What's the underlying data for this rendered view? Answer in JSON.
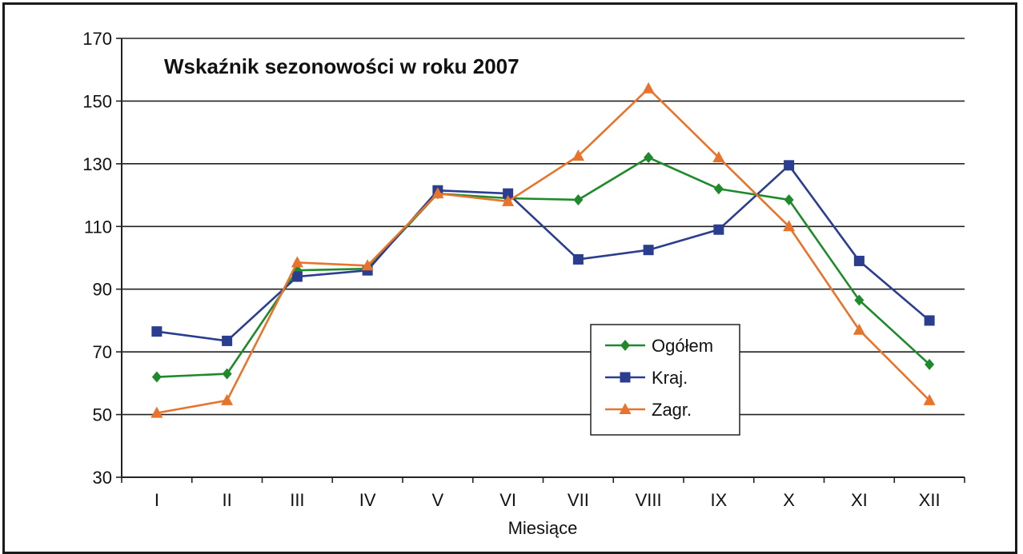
{
  "chart_data": {
    "type": "line",
    "title": "Wskaźnik sezonowości w roku 2007",
    "xlabel": "Miesiące",
    "ylabel": "",
    "categories": [
      "I",
      "II",
      "III",
      "IV",
      "V",
      "VI",
      "VII",
      "VIII",
      "IX",
      "X",
      "XI",
      "XII"
    ],
    "ylim": [
      30,
      170
    ],
    "yticks": [
      "30",
      "50",
      "70",
      "90",
      "110",
      "130",
      "150",
      "170"
    ],
    "grid": true,
    "legend_position": "center-right",
    "series": [
      {
        "name": "Ogółem",
        "color": "#1f8a2b",
        "marker": "diamond",
        "values": [
          62,
          63,
          96,
          96.5,
          120.5,
          119,
          118.5,
          132,
          122,
          118.5,
          86.5,
          66
        ]
      },
      {
        "name": "Kraj.",
        "color": "#2a3d8f",
        "marker": "square",
        "values": [
          76.5,
          73.5,
          94,
          96,
          121.5,
          120.5,
          99.5,
          102.5,
          109,
          129.5,
          99,
          80
        ]
      },
      {
        "name": "Zagr.",
        "color": "#e8742c",
        "marker": "triangle",
        "values": [
          50.5,
          54.5,
          98.5,
          97.5,
          120.5,
          118,
          132.5,
          154,
          132,
          110,
          77,
          54.5
        ]
      }
    ]
  }
}
